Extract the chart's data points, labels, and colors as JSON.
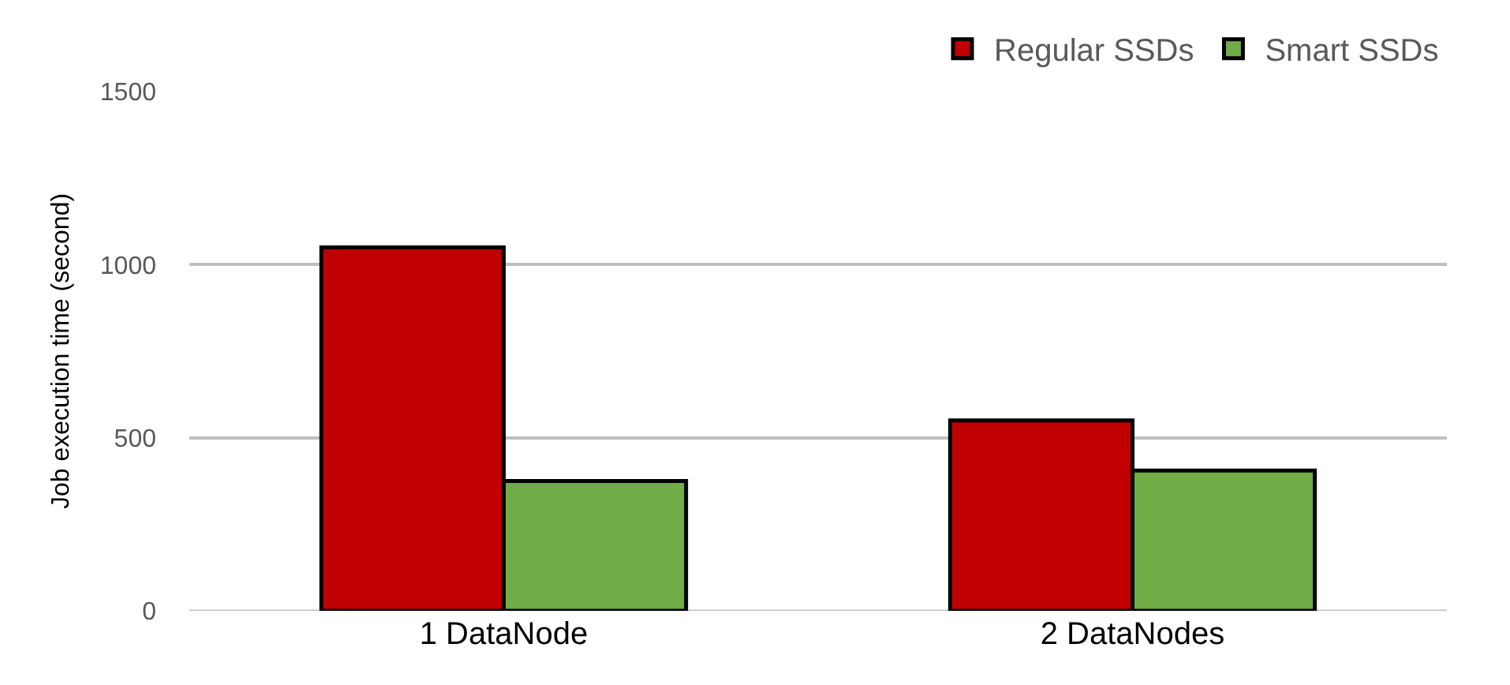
{
  "chart_data": {
    "type": "bar",
    "ylabel": "Job execution time (second)",
    "categories": [
      "1 DataNode",
      "2 DataNodes"
    ],
    "series": [
      {
        "name": "Regular SSDs",
        "color": "#c00000",
        "values": [
          1050,
          550
        ]
      },
      {
        "name": "Smart SSDs",
        "color": "#70ad47",
        "values": [
          375,
          405
        ]
      }
    ],
    "ylim": [
      0,
      1500
    ],
    "yticks": [
      0,
      500,
      1000,
      1500
    ],
    "grid": "y",
    "legend": "top right"
  }
}
